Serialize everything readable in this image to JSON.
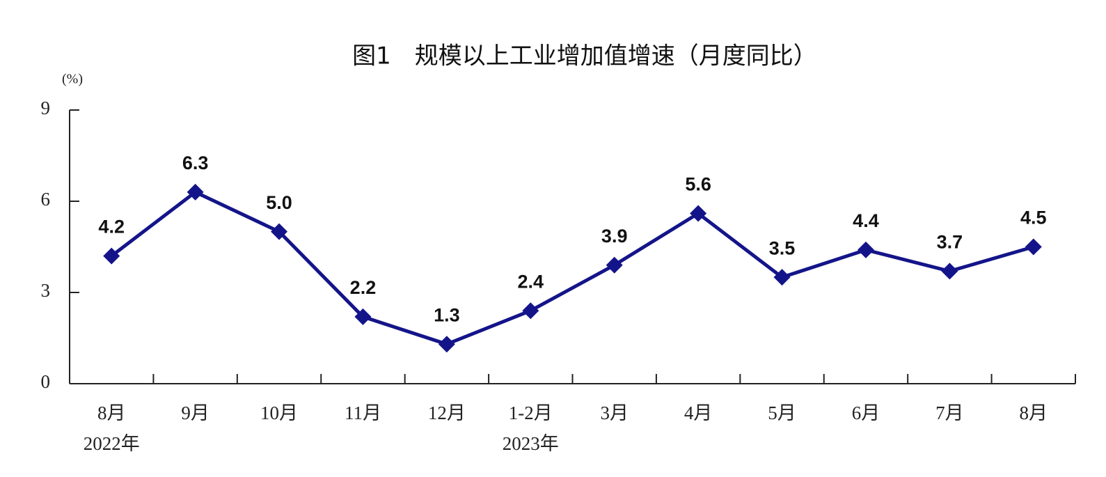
{
  "chart_data": {
    "type": "line",
    "title": "图1　规模以上工业增加值增速（月度同比）",
    "y_label": "(%)",
    "categories": [
      "8月",
      "9月",
      "10月",
      "11月",
      "12月",
      "1-2月",
      "3月",
      "4月",
      "5月",
      "6月",
      "7月",
      "8月"
    ],
    "x_group_labels": [
      "2022年",
      null,
      null,
      null,
      null,
      "2023年",
      null,
      null,
      null,
      null,
      null,
      null
    ],
    "series": [
      {
        "name": "规模以上工业增加值增速",
        "color": "#14148a",
        "values": [
          4.2,
          6.3,
          5.0,
          2.2,
          1.3,
          2.4,
          3.9,
          5.6,
          3.5,
          4.4,
          3.7,
          4.5
        ],
        "value_labels": [
          "4.2",
          "6.3",
          "5.0",
          "2.2",
          "1.3",
          "2.4",
          "3.9",
          "5.6",
          "3.5",
          "4.4",
          "3.7",
          "4.5"
        ]
      }
    ],
    "ylim": [
      0,
      9
    ],
    "yticks": [
      0,
      3,
      6,
      9
    ],
    "grid": false,
    "legend": false
  }
}
